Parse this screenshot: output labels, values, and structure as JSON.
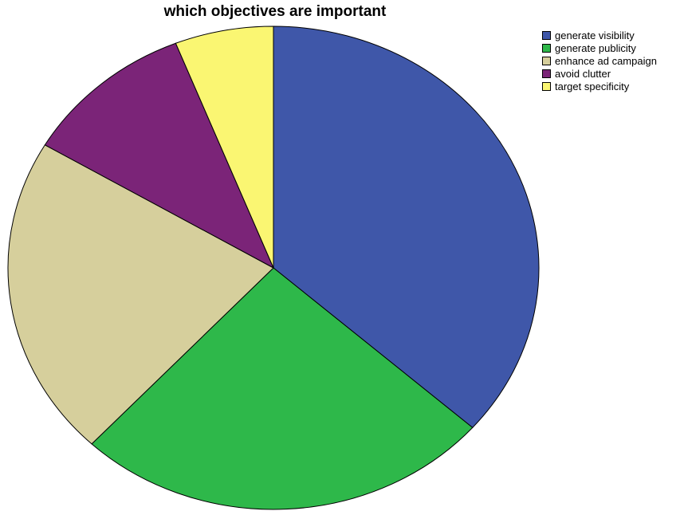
{
  "chart_data": {
    "type": "pie",
    "title": "which objectives are important",
    "categories": [
      "generate visibility",
      "generate publicity",
      "enhance ad campaign",
      "avoid clutter",
      "target specificity"
    ],
    "values": [
      36.5,
      25.5,
      21.5,
      10.5,
      6.0
    ],
    "unit": "percent",
    "colors": [
      "#3f57a9",
      "#2eb84a",
      "#d6cf9c",
      "#7b2478",
      "#faf672"
    ],
    "start": "12 o'clock",
    "direction": "clockwise",
    "legend_position": "top-right"
  }
}
